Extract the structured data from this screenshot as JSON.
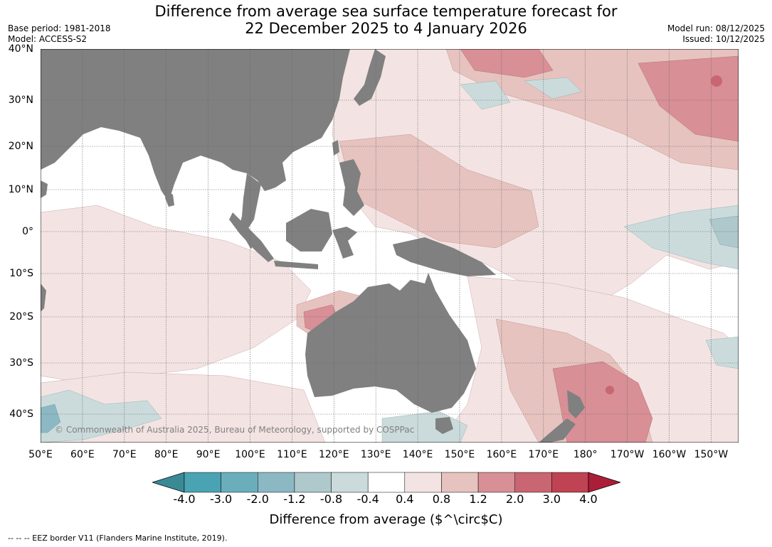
{
  "title_line1": "Difference from average sea surface temperature forecast for",
  "title_line2": "22 December 2025 to 4 January 2026",
  "base_period": "Base period: 1981-2018",
  "model": "Model: ACCESS-S2",
  "model_run": "Model run: 08/12/2025",
  "issued": "Issued: 10/12/2025",
  "lat_labels": [
    "40°N",
    "30°N",
    "20°N",
    "10°N",
    "0°",
    "10°S",
    "20°S",
    "30°S",
    "40°S"
  ],
  "lon_labels": [
    "50°E",
    "60°E",
    "70°E",
    "80°E",
    "90°E",
    "100°E",
    "110°E",
    "120°E",
    "130°E",
    "140°E",
    "150°E",
    "160°E",
    "170°E",
    "180°",
    "170°W",
    "160°W",
    "150°W"
  ],
  "copyright": "© Commonwealth of Australia 2025, Bureau of Meteorology, supported by COSPPac",
  "colorbar": {
    "ticks": [
      "-4.0",
      "-3.0",
      "-2.0",
      "-1.2",
      "-0.8",
      "-0.4",
      "0.4",
      "0.8",
      "1.2",
      "2.0",
      "3.0",
      "4.0"
    ],
    "colors": [
      "#3a8a96",
      "#4aa3b3",
      "#6aaebb",
      "#8cb8c4",
      "#aec8cc",
      "#cbdbdc",
      "#ffffff",
      "#f3e4e3",
      "#e6c3bf",
      "#d88f96",
      "#c96672",
      "#bf4352",
      "#ac1e38"
    ],
    "label": "Difference from average ($^\\circ$C)"
  },
  "footer": "--  --  -- EEZ border V11 (Flanders Marine Institute, 2019).",
  "colors": {
    "land": "#808080",
    "ocean_neutral": "#ffffff",
    "grid": "#666666"
  }
}
